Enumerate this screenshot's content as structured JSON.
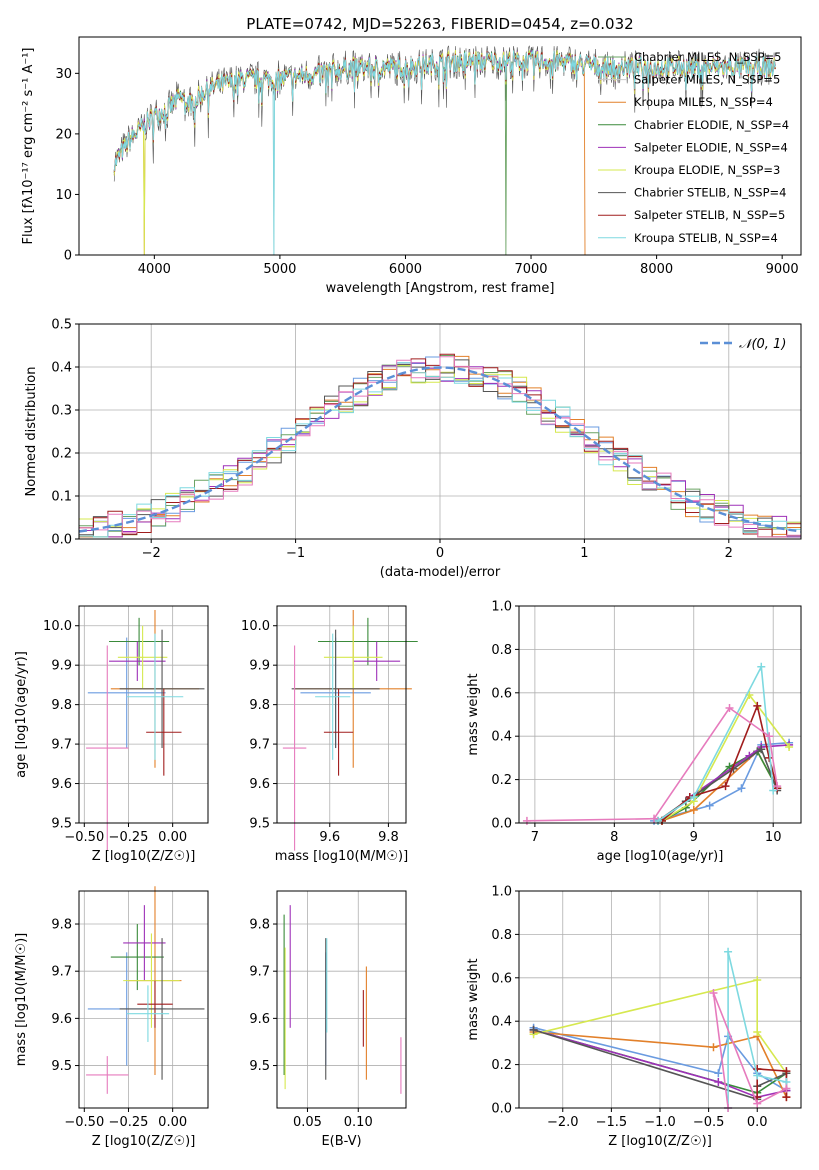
{
  "chart_data": [
    {
      "type": "line",
      "title": "PLATE=0742, MJD=52263, FIBERID=0454, z=0.032",
      "xlabel": "wavelength [Angstrom, rest frame]",
      "ylabel": "Flux [fλ10⁻¹⁷ erg cm⁻² s⁻¹ A⁻¹]",
      "xlim": [
        3400,
        9150
      ],
      "ylim": [
        0,
        36
      ],
      "xticks": [
        4000,
        5000,
        6000,
        7000,
        8000,
        9000
      ],
      "yticks": [
        0,
        10,
        20,
        30
      ],
      "grid": false,
      "legend_position": "top-right",
      "x": [
        3680,
        3800,
        3900,
        4000,
        4100,
        4200,
        4300,
        4400,
        4500,
        4700,
        5000,
        5300,
        5600,
        6000,
        6400,
        6800,
        7200,
        7600,
        8000,
        8500,
        8900
      ],
      "spectrum": [
        15,
        19,
        21,
        23,
        24,
        26,
        25,
        27,
        28,
        29,
        29,
        30,
        31,
        31,
        32,
        32,
        32,
        31,
        31,
        31,
        31
      ],
      "series": [
        {
          "name": "Chabrier MILES, N_SSP=5",
          "color": "#6ba364"
        },
        {
          "name": "Salpeter MILES, N_SSP=5",
          "color": "#c9c9c9"
        },
        {
          "name": "Kroupa MILES, N_SSP=4",
          "color": "#e2802a"
        },
        {
          "name": "Chabrier ELODIE, N_SSP=4",
          "color": "#3a8a3a"
        },
        {
          "name": "Salpeter ELODIE, N_SSP=4",
          "color": "#9e30b8"
        },
        {
          "name": "Kroupa ELODIE, N_SSP=3",
          "color": "#d6e84f"
        },
        {
          "name": "Chabrier STELIB, N_SSP=4",
          "color": "#555555"
        },
        {
          "name": "Salpeter STELIB, N_SSP=5",
          "color": "#a01d1d"
        },
        {
          "name": "Kroupa STELIB, N_SSP=4",
          "color": "#7ed9e0"
        }
      ]
    },
    {
      "type": "bar",
      "xlabel": "(data-model)/error",
      "ylabel": "Normed distribution",
      "xlim": [
        -2.5,
        2.5
      ],
      "ylim": [
        0,
        0.5
      ],
      "xticks": [
        -2,
        -1,
        0,
        1,
        2
      ],
      "yticks": [
        0.0,
        0.1,
        0.2,
        0.3,
        0.4,
        0.5
      ],
      "grid": true,
      "legend_position": "top-right",
      "legend": "𝒩(0, 1)",
      "bin_width": 0.1,
      "hist_colors": [
        "#6a9be0",
        "#e2802a",
        "#6ba364",
        "#9e30b8",
        "#d6e84f",
        "#555555",
        "#a01d1d",
        "#7ed9e0",
        "#e67bbd"
      ]
    },
    {
      "type": "scatter",
      "xlabel": "Z [log10(Z/Z☉)]",
      "ylabel": "age  [log10(age/yr)]",
      "xlim": [
        -0.53,
        0.2
      ],
      "ylim": [
        9.5,
        10.05
      ],
      "xticks": [
        -0.5,
        -0.25,
        0.0
      ],
      "yticks": [
        9.5,
        9.6,
        9.7,
        9.8,
        9.9,
        10.0
      ],
      "grid": true,
      "points": [
        {
          "x": -0.26,
          "y": 9.83,
          "xerr": 0.22,
          "yerr": 0.14,
          "color": "#6a9be0"
        },
        {
          "x": -0.1,
          "y": 9.84,
          "xerr": 0.25,
          "yerr": 0.2,
          "color": "#e2802a"
        },
        {
          "x": -0.19,
          "y": 9.96,
          "xerr": 0.17,
          "yerr": 0.06,
          "color": "#3a8a3a"
        },
        {
          "x": -0.2,
          "y": 9.91,
          "xerr": 0.16,
          "yerr": 0.05,
          "color": "#9e30b8"
        },
        {
          "x": -0.17,
          "y": 9.92,
          "xerr": 0.14,
          "yerr": 0.08,
          "color": "#d6e84f"
        },
        {
          "x": -0.06,
          "y": 9.84,
          "xerr": 0.24,
          "yerr": 0.15,
          "color": "#555555"
        },
        {
          "x": -0.05,
          "y": 9.73,
          "xerr": 0.1,
          "yerr": 0.11,
          "color": "#a01d1d"
        },
        {
          "x": -0.1,
          "y": 9.82,
          "xerr": 0.16,
          "yerr": 0.16,
          "color": "#7ed9e0"
        },
        {
          "x": -0.37,
          "y": 9.69,
          "xerr": 0.12,
          "yerr": 0.26,
          "color": "#e67bbd"
        }
      ]
    },
    {
      "type": "scatter",
      "xlabel": "mass [log10(M/M☉)]",
      "ylabel": "",
      "xlim": [
        9.42,
        9.86
      ],
      "ylim": [
        9.5,
        10.05
      ],
      "xticks": [
        9.6,
        9.8
      ],
      "yticks": [
        9.5,
        9.6,
        9.7,
        9.8,
        9.9,
        10.0
      ],
      "grid": true,
      "points": [
        {
          "x": 9.62,
          "y": 9.83,
          "xerr": 0.12,
          "yerr": 0.14,
          "color": "#6a9be0"
        },
        {
          "x": 9.68,
          "y": 9.84,
          "xerr": 0.2,
          "yerr": 0.2,
          "color": "#e2802a"
        },
        {
          "x": 9.73,
          "y": 9.96,
          "xerr": 0.17,
          "yerr": 0.06,
          "color": "#3a8a3a"
        },
        {
          "x": 9.76,
          "y": 9.91,
          "xerr": 0.08,
          "yerr": 0.05,
          "color": "#9e30b8"
        },
        {
          "x": 9.68,
          "y": 9.92,
          "xerr": 0.1,
          "yerr": 0.08,
          "color": "#d6e84f"
        },
        {
          "x": 9.62,
          "y": 9.84,
          "xerr": 0.15,
          "yerr": 0.15,
          "color": "#555555"
        },
        {
          "x": 9.63,
          "y": 9.73,
          "xerr": 0.05,
          "yerr": 0.11,
          "color": "#a01d1d"
        },
        {
          "x": 9.61,
          "y": 9.82,
          "xerr": 0.06,
          "yerr": 0.16,
          "color": "#7ed9e0"
        },
        {
          "x": 9.48,
          "y": 9.69,
          "xerr": 0.04,
          "yerr": 0.26,
          "color": "#e67bbd"
        }
      ]
    },
    {
      "type": "line",
      "xlabel": "age  [log10(age/yr)]",
      "ylabel": "mass weight",
      "xlim": [
        6.8,
        10.35
      ],
      "ylim": [
        0,
        1.0
      ],
      "xticks": [
        7,
        8,
        9,
        10
      ],
      "yticks": [
        0.0,
        0.2,
        0.4,
        0.6,
        0.8,
        1.0
      ],
      "grid": true,
      "series": [
        {
          "color": "#6a9be0",
          "x": [
            8.5,
            9.2,
            9.6,
            9.85,
            10.2
          ],
          "y": [
            0.01,
            0.08,
            0.16,
            0.36,
            0.37
          ]
        },
        {
          "color": "#e2802a",
          "x": [
            8.6,
            9.0,
            9.8,
            10.05
          ],
          "y": [
            0.01,
            0.06,
            0.33,
            0.16
          ]
        },
        {
          "color": "#3a8a3a",
          "x": [
            8.6,
            8.9,
            9.45,
            9.8,
            10.05
          ],
          "y": [
            0.01,
            0.07,
            0.26,
            0.33,
            0.16
          ]
        },
        {
          "color": "#9e30b8",
          "x": [
            8.6,
            8.95,
            9.7,
            9.85,
            10.2
          ],
          "y": [
            0.01,
            0.12,
            0.31,
            0.35,
            0.36
          ]
        },
        {
          "color": "#d6e84f",
          "x": [
            8.6,
            9.0,
            9.7,
            10.2
          ],
          "y": [
            0.01,
            0.1,
            0.59,
            0.35
          ]
        },
        {
          "color": "#555555",
          "x": [
            8.55,
            8.9,
            9.5,
            9.85,
            10.05
          ],
          "y": [
            0.01,
            0.1,
            0.25,
            0.34,
            0.15
          ]
        },
        {
          "color": "#a01d1d",
          "x": [
            8.6,
            8.95,
            9.4,
            9.8,
            9.95,
            10.05
          ],
          "y": [
            0.01,
            0.12,
            0.17,
            0.54,
            0.3,
            0.16
          ]
        },
        {
          "color": "#7ed9e0",
          "x": [
            8.55,
            9.0,
            9.85,
            10.0
          ],
          "y": [
            0.01,
            0.12,
            0.72,
            0.15
          ]
        },
        {
          "color": "#e67bbd",
          "x": [
            6.9,
            8.5,
            9.45,
            9.95,
            10.05
          ],
          "y": [
            0.01,
            0.02,
            0.53,
            0.4,
            0.17
          ]
        }
      ]
    },
    {
      "type": "scatter",
      "xlabel": "Z [log10(Z/Z☉)]",
      "ylabel": "mass [log10(M/M☉)]",
      "xlim": [
        -0.53,
        0.2
      ],
      "ylim": [
        9.41,
        9.87
      ],
      "xticks": [
        -0.5,
        -0.25,
        0.0
      ],
      "yticks": [
        9.5,
        9.6,
        9.7,
        9.8
      ],
      "grid": true,
      "points": [
        {
          "x": -0.26,
          "y": 9.62,
          "xerr": 0.22,
          "yerr": 0.12,
          "color": "#6a9be0"
        },
        {
          "x": -0.1,
          "y": 9.68,
          "xerr": 0.15,
          "yerr": 0.2,
          "color": "#e2802a"
        },
        {
          "x": -0.2,
          "y": 9.73,
          "xerr": 0.15,
          "yerr": 0.07,
          "color": "#3a8a3a"
        },
        {
          "x": -0.16,
          "y": 9.76,
          "xerr": 0.12,
          "yerr": 0.08,
          "color": "#9e30b8"
        },
        {
          "x": -0.12,
          "y": 9.68,
          "xerr": 0.16,
          "yerr": 0.1,
          "color": "#d6e84f"
        },
        {
          "x": -0.06,
          "y": 9.62,
          "xerr": 0.24,
          "yerr": 0.15,
          "color": "#555555"
        },
        {
          "x": -0.1,
          "y": 9.63,
          "xerr": 0.1,
          "yerr": 0.05,
          "color": "#a01d1d"
        },
        {
          "x": -0.14,
          "y": 9.61,
          "xerr": 0.12,
          "yerr": 0.06,
          "color": "#7ed9e0"
        },
        {
          "x": -0.37,
          "y": 9.48,
          "xerr": 0.12,
          "yerr": 0.04,
          "color": "#e67bbd"
        }
      ]
    },
    {
      "type": "scatter",
      "xlabel": "E(B-V)",
      "ylabel": "",
      "xlim": [
        0.02,
        0.147
      ],
      "ylim": [
        9.41,
        9.87
      ],
      "xticks": [
        0.05,
        0.1
      ],
      "yticks": [
        9.5,
        9.6,
        9.7,
        9.8
      ],
      "grid": true,
      "points": [
        {
          "x": 0.068,
          "y": 9.62,
          "yerr": 0.12,
          "color": "#6a9be0"
        },
        {
          "x": 0.108,
          "y": 9.59,
          "yerr": 0.12,
          "color": "#e2802a"
        },
        {
          "x": 0.027,
          "y": 9.65,
          "yerr": 0.17,
          "color": "#3a8a3a"
        },
        {
          "x": 0.033,
          "y": 9.71,
          "yerr": 0.13,
          "color": "#9e30b8"
        },
        {
          "x": 0.028,
          "y": 9.6,
          "yerr": 0.15,
          "color": "#d6e84f"
        },
        {
          "x": 0.068,
          "y": 9.62,
          "yerr": 0.15,
          "color": "#555555"
        },
        {
          "x": 0.105,
          "y": 9.6,
          "yerr": 0.06,
          "color": "#a01d1d"
        },
        {
          "x": 0.069,
          "y": 9.67,
          "yerr": 0.1,
          "color": "#7ed9e0"
        },
        {
          "x": 0.142,
          "y": 9.5,
          "yerr": 0.06,
          "color": "#e67bbd"
        }
      ]
    },
    {
      "type": "line",
      "xlabel": "Z [log10(Z/Z☉)]",
      "ylabel": "mass weight",
      "xlim": [
        -2.45,
        0.45
      ],
      "ylim": [
        0,
        1.0
      ],
      "xticks": [
        -2.0,
        -1.5,
        -1.0,
        -0.5,
        0.0
      ],
      "yticks": [
        0.0,
        0.2,
        0.4,
        0.6,
        0.8,
        1.0
      ],
      "grid": true,
      "series": [
        {
          "color": "#6a9be0",
          "x": [
            -2.3,
            -0.4,
            -0.3,
            0.0,
            0.3
          ],
          "y": [
            0.37,
            0.16,
            0.33,
            0.16,
            0.08
          ]
        },
        {
          "color": "#e2802a",
          "x": [
            -2.3,
            -0.45,
            0.0,
            0.3
          ],
          "y": [
            0.35,
            0.28,
            0.33,
            0.05
          ]
        },
        {
          "color": "#3a8a3a",
          "x": [
            -2.3,
            0.0,
            0.3
          ],
          "y": [
            0.36,
            0.07,
            0.16
          ]
        },
        {
          "color": "#9e30b8",
          "x": [
            -2.3,
            -0.4,
            0.0,
            0.3
          ],
          "y": [
            0.36,
            0.12,
            0.05,
            0.08
          ]
        },
        {
          "color": "#d6e84f",
          "x": [
            -2.3,
            0.0,
            0.0,
            0.3
          ],
          "y": [
            0.34,
            0.59,
            0.35,
            0.16
          ]
        },
        {
          "color": "#555555",
          "x": [
            -2.3,
            0.0,
            0.0,
            0.3
          ],
          "y": [
            0.36,
            0.04,
            0.1,
            0.16
          ]
        },
        {
          "color": "#a01d1d",
          "x": [
            0.0,
            0.0,
            0.3,
            0.3
          ],
          "y": [
            0.05,
            0.18,
            0.17,
            0.05
          ]
        },
        {
          "color": "#7ed9e0",
          "x": [
            -0.3,
            -0.3,
            0.0,
            0.3
          ],
          "y": [
            0.0,
            0.72,
            0.15,
            0.12
          ]
        },
        {
          "color": "#e67bbd",
          "x": [
            -0.3,
            -0.45,
            0.0,
            0.3
          ],
          "y": [
            0.0,
            0.53,
            0.02,
            0.09
          ]
        }
      ]
    }
  ]
}
